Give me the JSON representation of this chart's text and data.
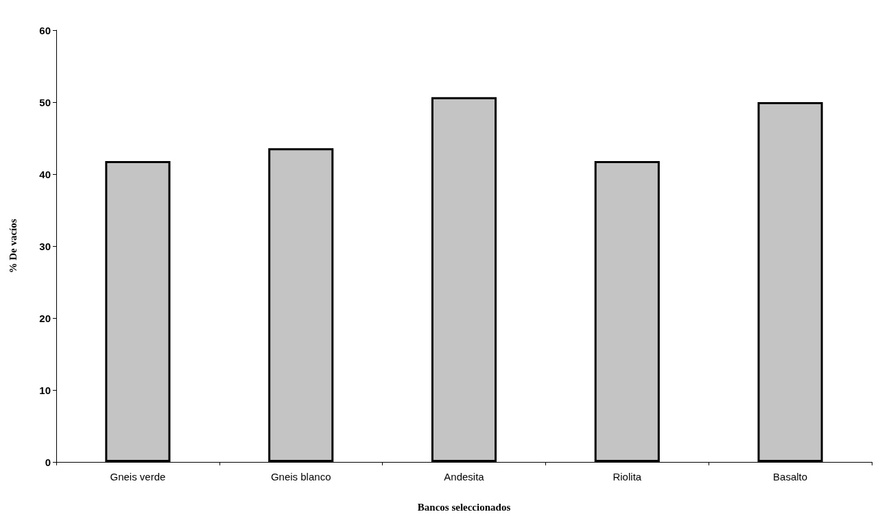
{
  "chart_data": {
    "type": "bar",
    "xlabel": "Bancos seleccionados",
    "ylabel": "% De vacíos",
    "categories": [
      "Gneis verde",
      "Gneis blanco",
      "Andesita",
      "Riolita",
      "Basalto"
    ],
    "values": [
      41.8,
      43.6,
      50.7,
      41.8,
      50
    ],
    "color": "#c4c4c4",
    "ylim": [
      0,
      60
    ],
    "yticks": [
      0,
      10,
      20,
      30,
      40,
      50,
      60
    ],
    "grid": false
  }
}
